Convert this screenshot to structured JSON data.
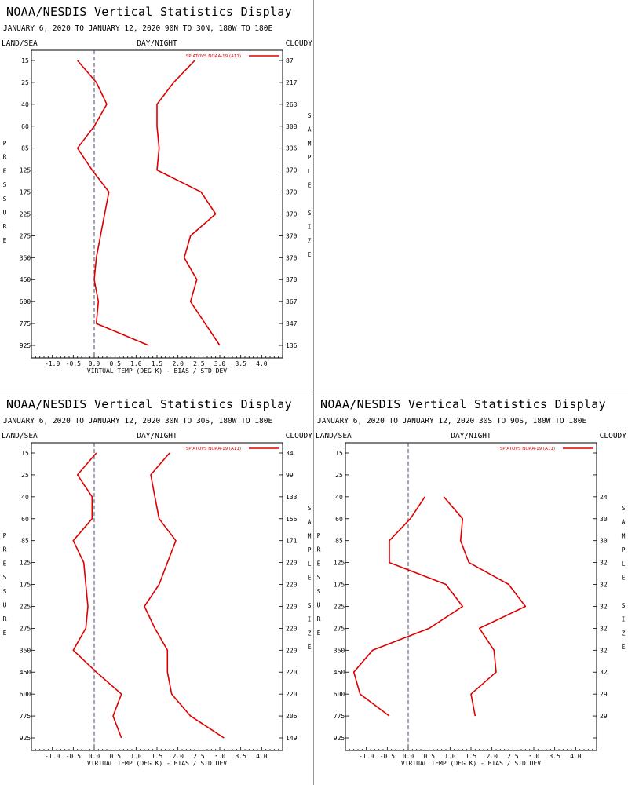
{
  "colors": {
    "series": "#dd0000",
    "axis": "#000000",
    "zero_line": "#4a4a6a"
  },
  "common": {
    "title": "NOAA/NESDIS Vertical Statistics Display",
    "land_sea": "LAND/SEA",
    "day_night": "DAY/NIGHT",
    "cloudy": "CLOUDY",
    "xlabel": "VIRTUAL TEMP (DEG K) - BIAS / STD DEV",
    "ylabel": "PRESSURE",
    "right_label": "SAMPLE SIZE",
    "legend": "SP ATOVS NOAA-19 (A11)"
  },
  "chart_data": [
    {
      "type": "line",
      "subtitle": "JANUARY 6, 2020 TO JANUARY 12, 2020   90N TO 30N, 180W TO 180E",
      "pressure_levels": [
        "15",
        "25",
        "40",
        "60",
        "85",
        "125",
        "175",
        "225",
        "275",
        "350",
        "450",
        "600",
        "775",
        "925"
      ],
      "sample_size": [
        "87",
        "217",
        "263",
        "308",
        "336",
        "370",
        "370",
        "370",
        "370",
        "370",
        "370",
        "367",
        "347",
        "136"
      ],
      "xlim": [
        -1.5,
        4.5
      ],
      "xticks": [
        "-1.0",
        "-0.5",
        "0.0",
        "0.5",
        "1.0",
        "1.5",
        "2.0",
        "2.5",
        "3.0",
        "3.5",
        "4.0"
      ],
      "series": [
        {
          "values": [
            -0.4,
            0.05,
            0.3,
            0.0,
            -0.4,
            -0.05,
            0.35,
            0.25,
            0.15,
            0.05,
            0.0,
            0.1,
            0.05,
            1.3
          ]
        },
        {
          "values": [
            2.4,
            1.9,
            1.5,
            1.5,
            1.55,
            1.5,
            2.55,
            2.9,
            2.3,
            2.15,
            2.45,
            2.3,
            2.65,
            3.0
          ]
        }
      ]
    },
    {
      "type": "line",
      "subtitle": "JANUARY 6, 2020 TO JANUARY 12, 2020   30N TO 30S, 180W TO 180E",
      "pressure_levels": [
        "15",
        "25",
        "40",
        "60",
        "85",
        "125",
        "175",
        "225",
        "275",
        "350",
        "450",
        "600",
        "775",
        "925"
      ],
      "sample_size": [
        "34",
        "99",
        "133",
        "156",
        "171",
        "220",
        "220",
        "220",
        "220",
        "220",
        "220",
        "220",
        "206",
        "149"
      ],
      "xlim": [
        -1.5,
        4.5
      ],
      "xticks": [
        "-1.0",
        "-0.5",
        "0.0",
        "0.5",
        "1.0",
        "1.5",
        "2.0",
        "2.5",
        "3.0",
        "3.5",
        "4.0"
      ],
      "series": [
        {
          "values": [
            0.05,
            -0.4,
            -0.05,
            -0.05,
            -0.5,
            -0.25,
            -0.2,
            -0.15,
            -0.2,
            -0.5,
            0.05,
            0.65,
            0.45,
            0.65
          ]
        },
        {
          "values": [
            1.8,
            1.35,
            1.45,
            1.55,
            1.95,
            1.75,
            1.55,
            1.2,
            1.45,
            1.75,
            1.75,
            1.85,
            2.3,
            3.1
          ]
        }
      ]
    },
    {
      "type": "line",
      "subtitle": "JANUARY 6, 2020 TO JANUARY 12, 2020   30S TO 90S, 180W TO 180E",
      "pressure_levels": [
        "15",
        "25",
        "40",
        "60",
        "85",
        "125",
        "175",
        "225",
        "275",
        "350",
        "450",
        "600",
        "775",
        "925"
      ],
      "sample_size": [
        "",
        "",
        "24",
        "30",
        "30",
        "32",
        "32",
        "32",
        "32",
        "32",
        "32",
        "29",
        "29",
        ""
      ],
      "xlim": [
        -1.5,
        4.5
      ],
      "xticks": [
        "-1.0",
        "-0.5",
        "0.0",
        "0.5",
        "1.0",
        "1.5",
        "2.0",
        "2.5",
        "3.0",
        "3.5",
        "4.0"
      ],
      "series": [
        {
          "values": [
            null,
            null,
            0.4,
            0.05,
            -0.45,
            -0.45,
            0.9,
            1.3,
            0.5,
            -0.85,
            -1.3,
            -1.15,
            -0.45,
            null
          ]
        },
        {
          "values": [
            null,
            null,
            0.85,
            1.3,
            1.25,
            1.45,
            2.4,
            2.8,
            1.7,
            2.05,
            2.1,
            1.5,
            1.6,
            null
          ]
        }
      ]
    }
  ]
}
